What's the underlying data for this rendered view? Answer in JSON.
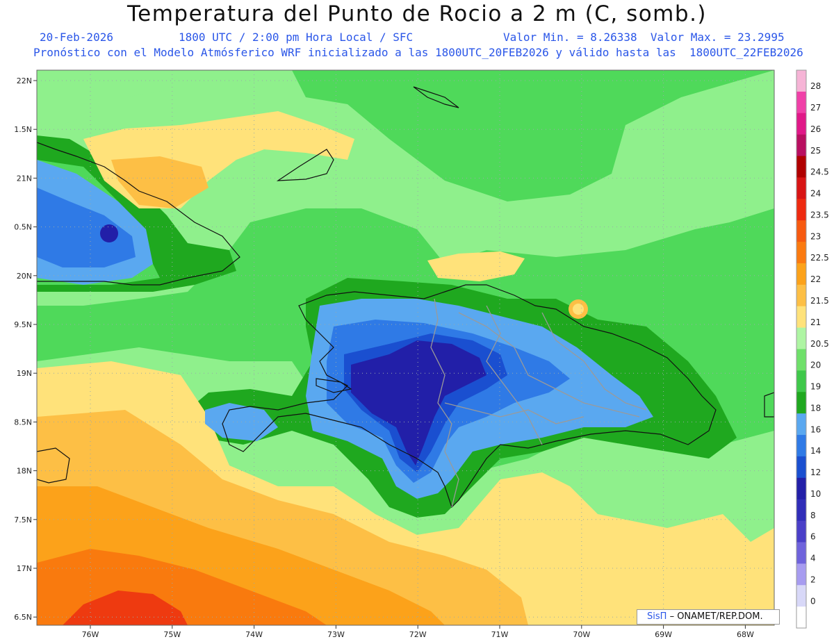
{
  "header": {
    "title": "Temperatura del Punto de Rocio a 2 m (C, somb.)",
    "date": "20-Feb-2026",
    "time": "1800 UTC / 2:00 pm Hora Local / SFC",
    "minmax": "Valor Min. = 8.26338  Valor Max. = 23.2995",
    "model": "Pronóstico con el Modelo Atmósferico WRF inicializado a las 1800UTC_20FEB2026 y válido hasta las  1800UTC_22FEB2026"
  },
  "map": {
    "lat_labels": [
      "22N",
      "1.5N",
      "21N",
      "0.5N",
      "20N",
      "9.5N",
      "19N",
      "8.5N",
      "18N",
      "7.5N",
      "17N",
      "6.5N"
    ],
    "lon_labels": [
      "76W",
      "75W",
      "74W",
      "73W",
      "72W",
      "71W",
      "70W",
      "69W",
      "68W"
    ],
    "min_value": 8.26338,
    "max_value": 23.2995,
    "palette": {
      "lt20": "#8ff08c",
      "c19": "#4fd95a",
      "c18": "#1fa81f",
      "c16": "#5aa8f0",
      "c14": "#2f7ae6",
      "c12": "#1a4fd0",
      "c10": "#221fa8",
      "c21": "#ffe27a",
      "c21_5": "#fdbf45",
      "c22": "#fca21a",
      "c22_5": "#f97a0e",
      "c23": "#ee3a10",
      "c23_5": "#d81414"
    }
  },
  "colorbar": {
    "labels": [
      "28",
      "27",
      "26",
      "25",
      "24.5",
      "24",
      "23.5",
      "23",
      "22.5",
      "22",
      "21.5",
      "21",
      "20.5",
      "20",
      "19",
      "18",
      "16",
      "14",
      "12",
      "10",
      "8",
      "6",
      "4",
      "2",
      "0"
    ],
    "colors": [
      "#f6b4d6",
      "#f040a8",
      "#e01888",
      "#b80f60",
      "#b00000",
      "#d81414",
      "#ee2a10",
      "#f75a10",
      "#fb7a10",
      "#fca21a",
      "#fdbf45",
      "#ffe27a",
      "#aef5a3",
      "#6fe06a",
      "#3fc84a",
      "#1fa81f",
      "#5aa8f0",
      "#2f7ae6",
      "#1a4fd0",
      "#221fa8",
      "#302db8",
      "#4a3fc8",
      "#6f63dc",
      "#a79cf0",
      "#d8d8f8",
      "#ffffff"
    ]
  },
  "credit": {
    "brand": "SisΠ",
    "org": "– ONAMET/REP.DOM."
  }
}
